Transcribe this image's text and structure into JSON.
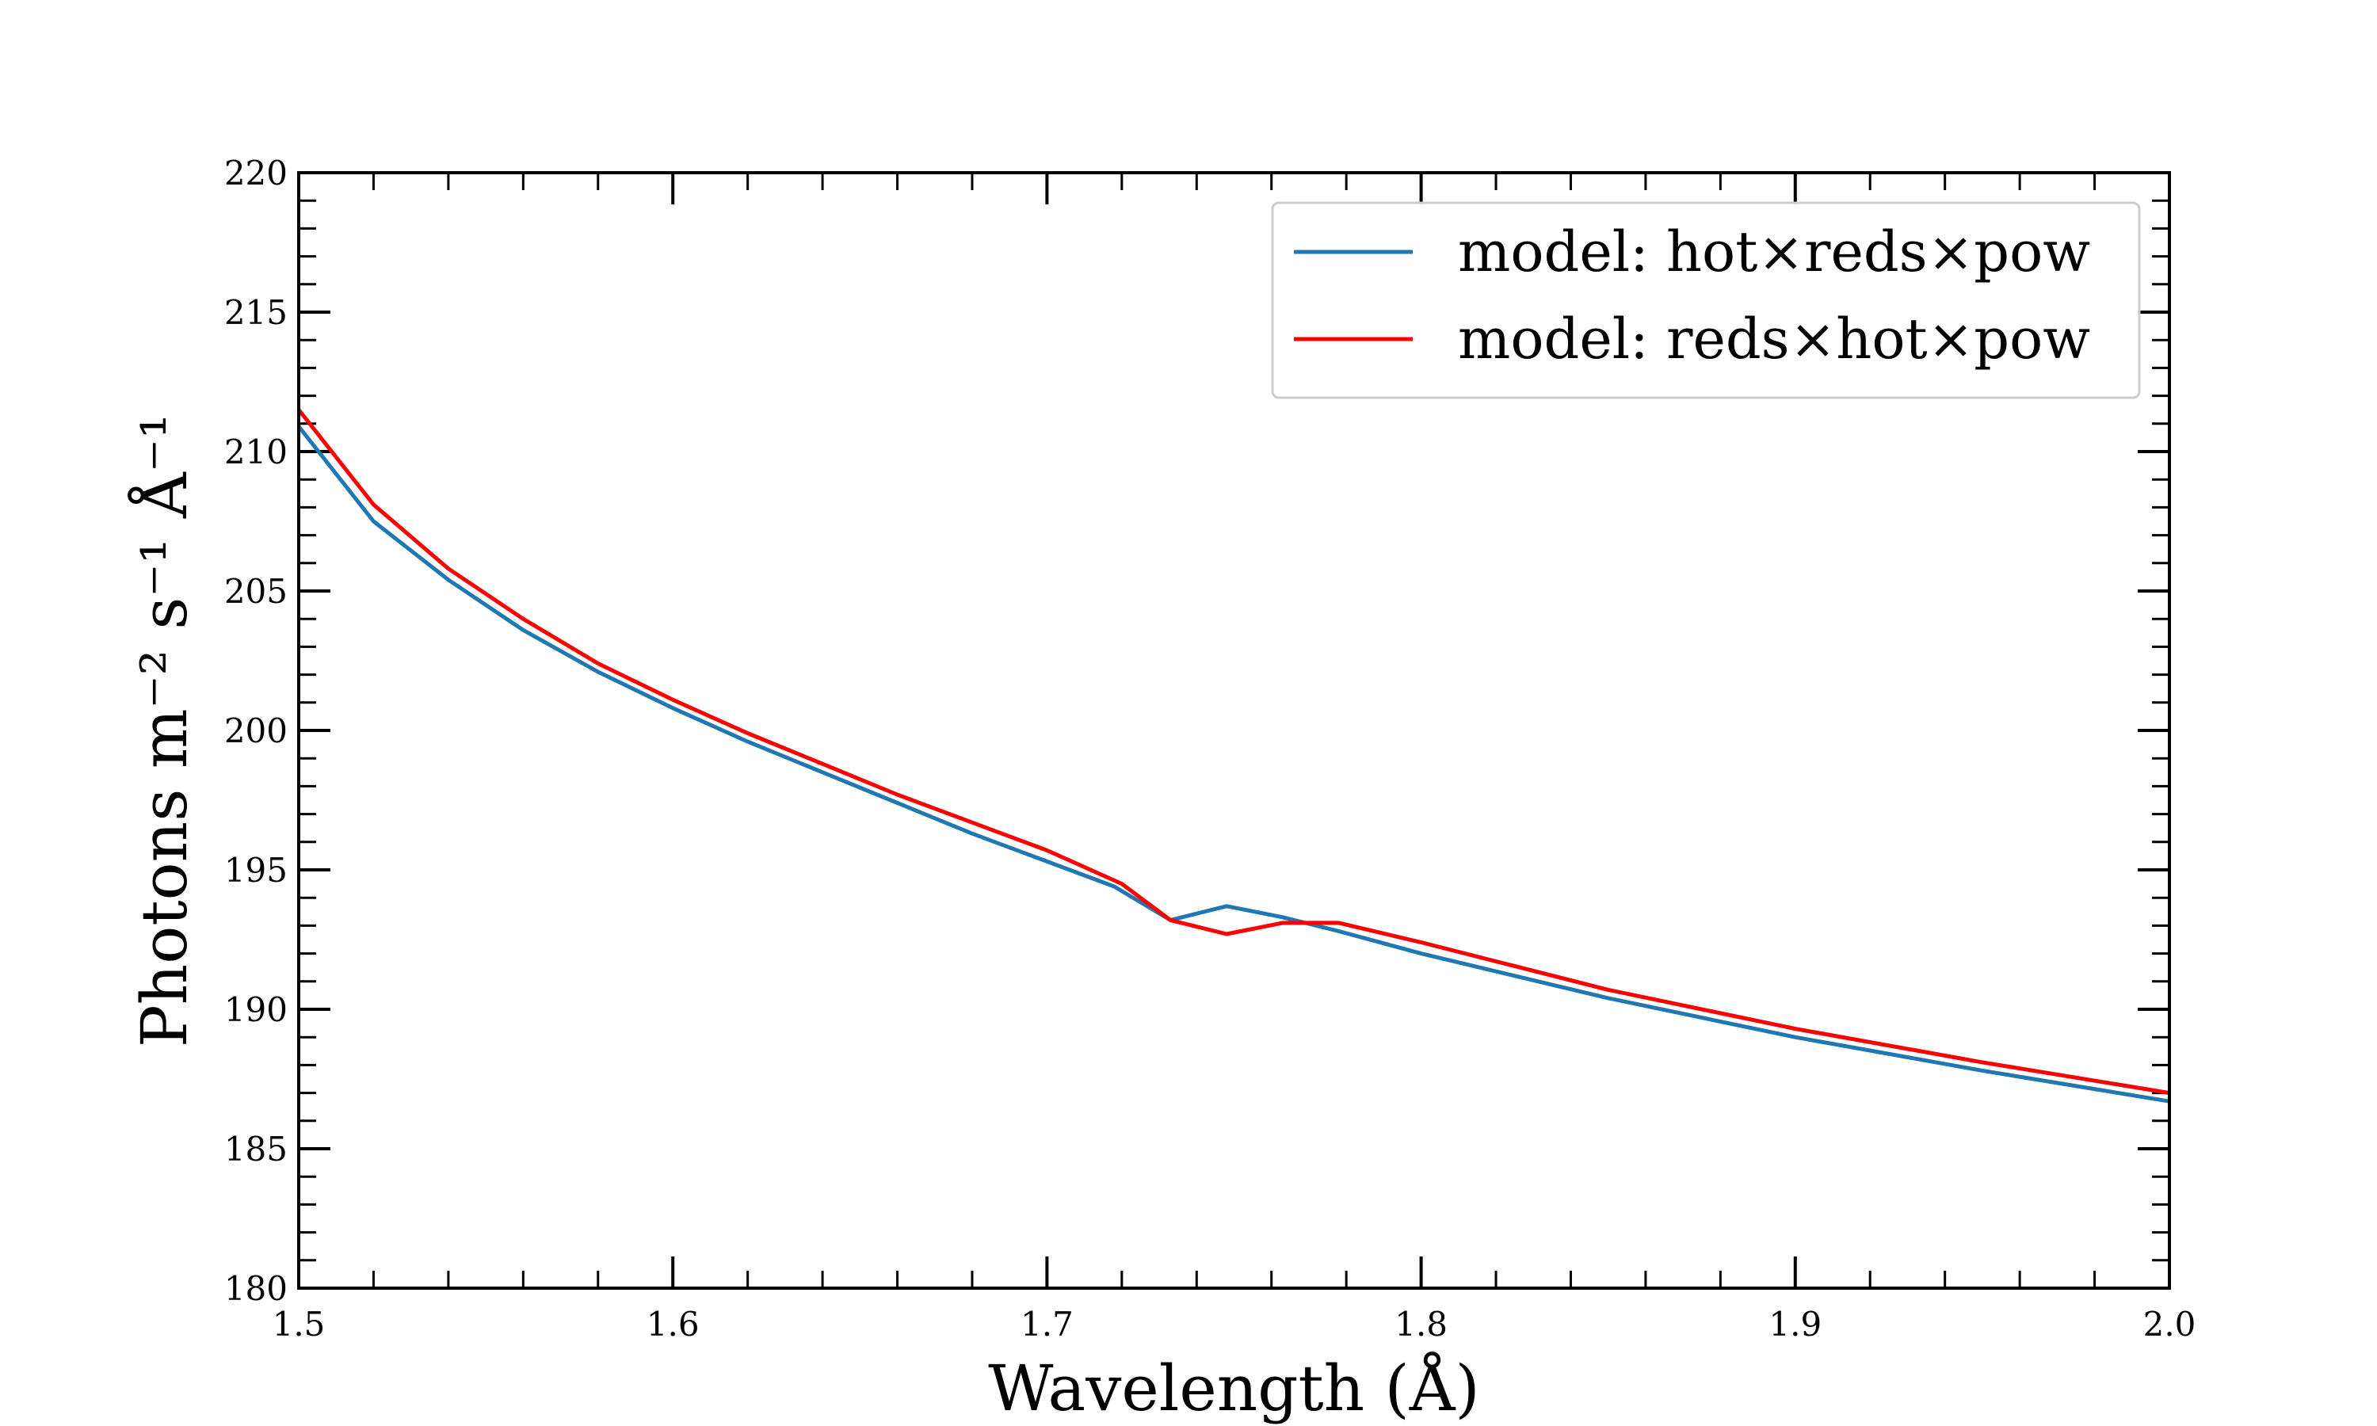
{
  "chart_data": {
    "type": "line",
    "title": "",
    "xlabel": "Wavelength (Å)",
    "ylabel": "Photons m⁻² s⁻¹ Å⁻¹",
    "xlim": [
      1.5,
      2.0
    ],
    "ylim": [
      180,
      220
    ],
    "xticks": [
      "1.5",
      "1.6",
      "1.7",
      "1.8",
      "1.9",
      "2.0"
    ],
    "yticks": [
      "180",
      "185",
      "190",
      "195",
      "200",
      "205",
      "210",
      "215",
      "220"
    ],
    "grid": false,
    "legend_position": "upper right",
    "series": [
      {
        "name": "model: hot×reds×pow",
        "color": "#1f77b4",
        "x": [
          1.5,
          1.52,
          1.54,
          1.56,
          1.58,
          1.6,
          1.62,
          1.64,
          1.66,
          1.68,
          1.7,
          1.718,
          1.733,
          1.748,
          1.763,
          1.778,
          1.8,
          1.85,
          1.9,
          1.95,
          2.0
        ],
        "y": [
          210.9,
          207.5,
          205.4,
          203.6,
          202.1,
          200.8,
          199.6,
          198.5,
          197.4,
          196.3,
          195.3,
          194.4,
          193.2,
          193.7,
          193.3,
          192.8,
          192.0,
          190.4,
          189.0,
          187.8,
          186.7
        ]
      },
      {
        "name": "model: reds×hot×pow",
        "color": "#ff0000",
        "x": [
          1.5,
          1.52,
          1.54,
          1.56,
          1.58,
          1.6,
          1.62,
          1.64,
          1.66,
          1.68,
          1.7,
          1.72,
          1.733,
          1.748,
          1.763,
          1.778,
          1.8,
          1.85,
          1.9,
          1.95,
          2.0
        ],
        "y": [
          211.5,
          208.1,
          205.8,
          204.0,
          202.4,
          201.1,
          199.9,
          198.8,
          197.7,
          196.7,
          195.7,
          194.5,
          193.2,
          192.7,
          193.1,
          193.1,
          192.4,
          190.7,
          189.3,
          188.1,
          187.0
        ]
      }
    ]
  }
}
